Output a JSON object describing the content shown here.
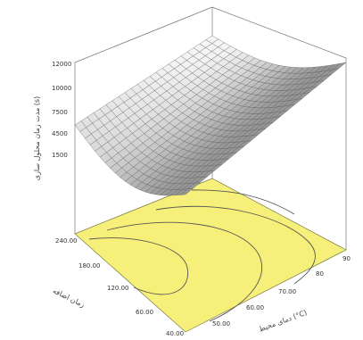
{
  "chart_data": {
    "type": "surface",
    "z_axis": {
      "label": "مدت زمان محلول سازی (s)",
      "ticks": [
        "12000",
        "10000",
        "7500",
        "4500",
        "1500"
      ]
    },
    "x_axis": {
      "label": "زمان اضافه",
      "ticks": [
        "240.00",
        "180.00",
        "120.00",
        "60.00",
        "40.00"
      ]
    },
    "y_axis": {
      "label": "دمای محیط (°C)",
      "ticks": [
        "90",
        "80",
        "70.00",
        "60.00",
        "50.00"
      ]
    },
    "contour_floor_color": "#f6f07a",
    "surface_color": "#d4d4d4"
  }
}
